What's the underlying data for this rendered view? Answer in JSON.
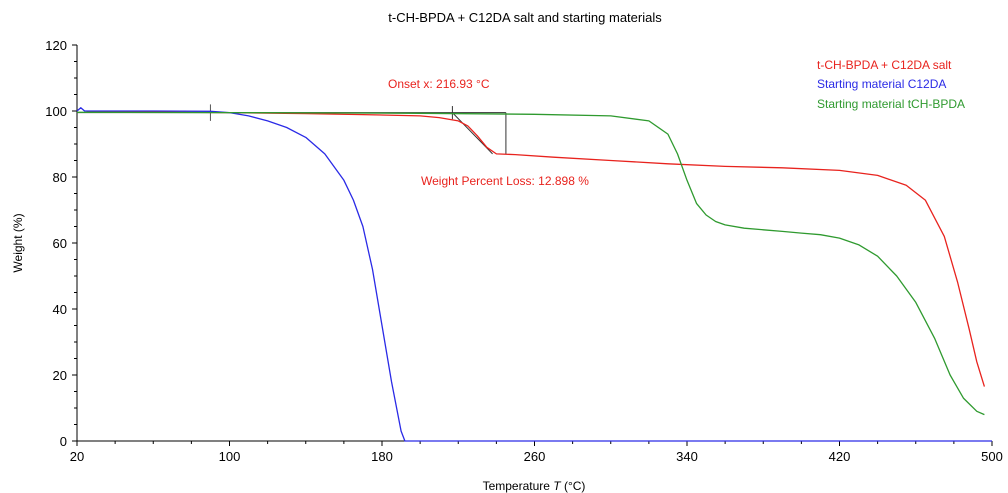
{
  "chart_data": {
    "type": "line",
    "title": "t-CH-BPDA + C12DA salt and starting materials",
    "xlabel_prefix": "Temperature ",
    "xlabel_var": "T",
    "xlabel_unit": " (°C)",
    "ylabel": "Weight  (%)",
    "xlim": [
      20,
      500
    ],
    "ylim": [
      0,
      120
    ],
    "xticks": [
      20,
      100,
      180,
      260,
      340,
      420,
      500
    ],
    "yticks": [
      0,
      20,
      40,
      60,
      80,
      100,
      120
    ],
    "grid": false,
    "legend_position": "top-right",
    "series": [
      {
        "name": "t-CH-BPDA + C12DA salt",
        "color": "#e8231e",
        "x": [
          25,
          60,
          100,
          140,
          170,
          200,
          210,
          220,
          225,
          230,
          235,
          240,
          250,
          270,
          300,
          330,
          360,
          390,
          420,
          440,
          455,
          465,
          475,
          482,
          488,
          492,
          496
        ],
        "y": [
          99.8,
          99.7,
          99.5,
          99.2,
          98.9,
          98.5,
          98.0,
          97.0,
          95.5,
          92.5,
          89.0,
          87.0,
          86.8,
          86.0,
          85.0,
          84.0,
          83.2,
          82.8,
          82.0,
          80.5,
          77.5,
          73.0,
          62.0,
          48.0,
          34.0,
          24.0,
          16.5
        ]
      },
      {
        "name": "Starting material C12DA",
        "color": "#2a2ae6",
        "x": [
          20,
          22,
          24,
          60,
          90,
          100,
          110,
          120,
          130,
          140,
          150,
          160,
          165,
          170,
          175,
          180,
          185,
          190,
          192,
          195,
          200,
          260,
          340,
          420,
          500
        ],
        "y": [
          100,
          101,
          100,
          100,
          99.9,
          99.5,
          98.5,
          97.0,
          95.0,
          92.0,
          87.0,
          79.0,
          73.0,
          65.0,
          52.0,
          35.0,
          18.0,
          3.0,
          0.0,
          0.0,
          0.0,
          0.0,
          0.0,
          0.0,
          0.0
        ]
      },
      {
        "name": "Starting material tCH-BPDA",
        "color": "#2f9a2f",
        "x": [
          20,
          100,
          200,
          260,
          300,
          320,
          330,
          335,
          340,
          345,
          350,
          355,
          360,
          370,
          380,
          390,
          400,
          410,
          420,
          430,
          440,
          450,
          460,
          470,
          478,
          485,
          492,
          496
        ],
        "y": [
          99.6,
          99.5,
          99.3,
          99.0,
          98.5,
          97.0,
          93.0,
          87.0,
          79.0,
          72.0,
          68.5,
          66.5,
          65.5,
          64.5,
          64.0,
          63.5,
          63.0,
          62.5,
          61.5,
          59.5,
          56.0,
          50.0,
          42.0,
          31.0,
          20.0,
          13.0,
          9.0,
          8.0
        ]
      }
    ],
    "annotations": {
      "onset_text": "Onset x: 216.93 °C",
      "loss_text": "Weight Percent Loss: 12.898 %",
      "onset_x": 216.93,
      "weight_loss_percent": 12.898,
      "annotation_color": "#e8231e",
      "marker_color": "#333333"
    }
  }
}
